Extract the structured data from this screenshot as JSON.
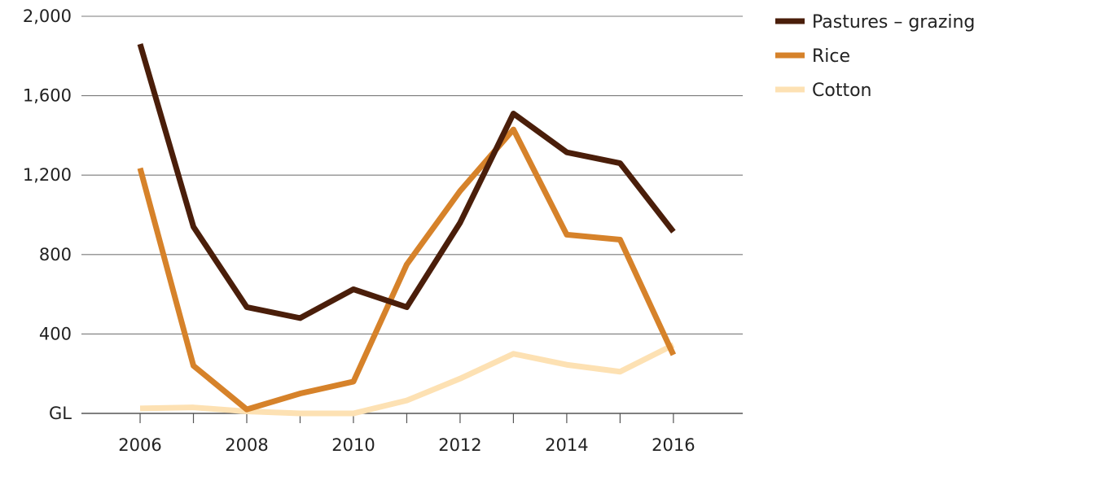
{
  "chart_data": {
    "type": "line",
    "x": [
      2006,
      2007,
      2008,
      2009,
      2010,
      2011,
      2012,
      2013,
      2014,
      2015,
      2016
    ],
    "x_ticks": [
      2006,
      2007,
      2008,
      2009,
      2010,
      2011,
      2012,
      2013,
      2014,
      2015,
      2016
    ],
    "x_tick_labels": [
      "2006",
      "2008",
      "2010",
      "2012",
      "2014",
      "2016"
    ],
    "xlim": [
      2004.9,
      2017.3
    ],
    "y_ticks": [
      0,
      400,
      800,
      1200,
      1600,
      2000
    ],
    "y_tick_labels": [
      "GL",
      "400",
      "800",
      "1,200",
      "1,600",
      "2,000"
    ],
    "ylim": [
      0,
      2000
    ],
    "grid": true,
    "legend_position": "top-right",
    "series": [
      {
        "name": "Pastures – grazing",
        "color": "#4a1e0a",
        "values": [
          1860,
          940,
          535,
          480,
          625,
          535,
          960,
          1510,
          1315,
          1260,
          915
        ]
      },
      {
        "name": "Rice",
        "color": "#d6822a",
        "values": [
          1235,
          240,
          20,
          100,
          160,
          750,
          1120,
          1430,
          900,
          875,
          295
        ]
      },
      {
        "name": "Cotton",
        "color": "#fde1b3",
        "values": [
          25,
          30,
          10,
          0,
          0,
          65,
          175,
          300,
          245,
          210,
          345
        ]
      }
    ]
  }
}
